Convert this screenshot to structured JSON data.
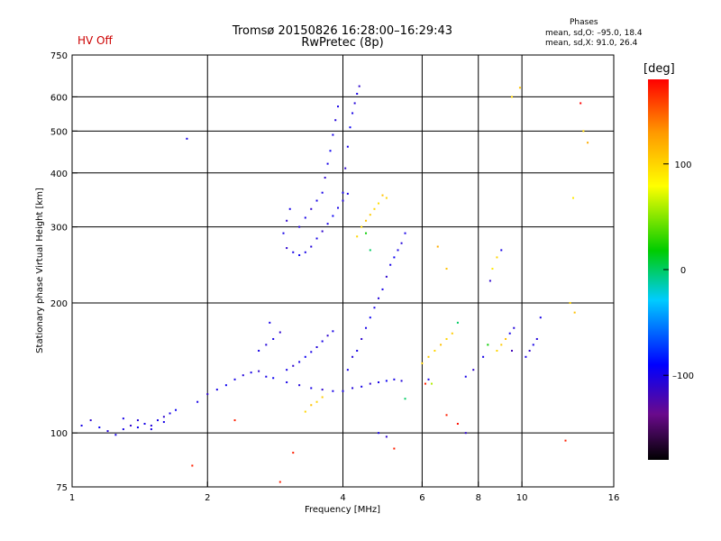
{
  "header": {
    "title_line1": "Tromsø 20150826 16:28:00–16:29:43",
    "title_line2": "RwPretec (8p)",
    "status": "HV Off",
    "stats_title": "Phases",
    "stats_o": "mean, sd,O: –95.0, 18.4",
    "stats_x": "mean, sd,X:  91.0, 26.4"
  },
  "colors": {
    "status": "#cc0000",
    "dominant_trace": "#1a22ee"
  },
  "colorbar": {
    "label": "[deg]",
    "ticks": [
      {
        "value": 100,
        "label": "100"
      },
      {
        "value": 0,
        "label": "0"
      },
      {
        "value": -100,
        "label": "–100"
      }
    ],
    "range": [
      -180,
      180
    ],
    "colormap": "rainbow: black/purple (low) → blue → cyan → green → yellow → orange → red (high)"
  },
  "chart_data": {
    "type": "scatter",
    "title": "Tromsø 20150826 16:28:00–16:29:43",
    "subtitle": "RwPretec (8p)",
    "xlabel": "Frequency [MHz]",
    "ylabel": "Stationary phase Virtual Height [km]",
    "xscale": "log",
    "yscale": "log",
    "xlim": [
      1,
      16
    ],
    "ylim": [
      75,
      750
    ],
    "grid": true,
    "x_gridlines": [
      2,
      4,
      6,
      8,
      10
    ],
    "y_gridlines": [
      100,
      200,
      300,
      400,
      500,
      600
    ],
    "x_ticks": [
      {
        "value": 1,
        "label": "1"
      },
      {
        "value": 2,
        "label": "2"
      },
      {
        "value": 4,
        "label": "4"
      },
      {
        "value": 6,
        "label": "6"
      },
      {
        "value": 8,
        "label": "8"
      },
      {
        "value": 10,
        "label": "10"
      },
      {
        "value": 16,
        "label": "16"
      }
    ],
    "y_ticks": [
      {
        "value": 75,
        "label": "75"
      },
      {
        "value": 100,
        "label": "100"
      },
      {
        "value": 200,
        "label": "200"
      },
      {
        "value": 300,
        "label": "300"
      },
      {
        "value": 400,
        "label": "400"
      },
      {
        "value": 500,
        "label": "500"
      },
      {
        "value": 600,
        "label": "600"
      },
      {
        "value": 750,
        "label": "750"
      }
    ],
    "series": [
      {
        "points": [
          [
            1.05,
            104,
            -100
          ],
          [
            1.1,
            107,
            -110
          ],
          [
            1.15,
            103,
            -95
          ],
          [
            1.2,
            101,
            -105
          ],
          [
            1.25,
            99,
            -100
          ],
          [
            1.3,
            102,
            -100
          ],
          [
            1.35,
            104,
            -110
          ],
          [
            1.4,
            103,
            -95
          ],
          [
            1.45,
            105,
            -100
          ],
          [
            1.5,
            104,
            -105
          ],
          [
            1.55,
            107,
            -100
          ],
          [
            1.6,
            109,
            -110
          ],
          [
            1.65,
            111,
            -100
          ],
          [
            1.7,
            113,
            -95
          ],
          [
            1.3,
            108,
            -100
          ],
          [
            1.4,
            107,
            -105
          ],
          [
            1.5,
            102,
            -100
          ],
          [
            1.6,
            106,
            -100
          ],
          [
            1.9,
            118,
            -100
          ],
          [
            2.0,
            123,
            -110
          ],
          [
            2.1,
            126,
            -100
          ],
          [
            2.2,
            129,
            -95
          ],
          [
            2.3,
            133,
            -100
          ],
          [
            2.4,
            136,
            -105
          ],
          [
            2.5,
            138,
            -100
          ],
          [
            2.6,
            139,
            -110
          ],
          [
            2.7,
            135,
            -100
          ],
          [
            2.8,
            134,
            -95
          ],
          [
            3.0,
            131,
            -100
          ],
          [
            3.2,
            129,
            -105
          ],
          [
            3.4,
            127,
            -100
          ],
          [
            3.6,
            126,
            -110
          ],
          [
            3.8,
            125,
            -100
          ],
          [
            3.0,
            140,
            -100
          ],
          [
            3.1,
            143,
            -110
          ],
          [
            3.2,
            146,
            -100
          ],
          [
            3.3,
            150,
            -95
          ],
          [
            3.4,
            154,
            -100
          ],
          [
            3.5,
            158,
            -105
          ],
          [
            3.6,
            163,
            -100
          ],
          [
            3.7,
            168,
            -110
          ],
          [
            3.8,
            172,
            -100
          ],
          [
            2.6,
            155,
            -100
          ],
          [
            2.7,
            160,
            -105
          ],
          [
            2.8,
            165,
            -100
          ],
          [
            2.9,
            171,
            -110
          ],
          [
            2.75,
            180,
            -100
          ],
          [
            3.0,
            268,
            -110
          ],
          [
            3.1,
            262,
            -100
          ],
          [
            3.2,
            258,
            -95
          ],
          [
            3.3,
            262,
            -100
          ],
          [
            3.4,
            270,
            -105
          ],
          [
            3.5,
            282,
            -100
          ],
          [
            3.6,
            293,
            -110
          ],
          [
            3.7,
            305,
            -100
          ],
          [
            3.8,
            318,
            -95
          ],
          [
            3.9,
            332,
            -100
          ],
          [
            4.0,
            345,
            -105
          ],
          [
            4.1,
            358,
            -100
          ],
          [
            2.95,
            290,
            -100
          ],
          [
            3.0,
            310,
            -110
          ],
          [
            3.05,
            330,
            -100
          ],
          [
            3.2,
            300,
            -105
          ],
          [
            3.3,
            315,
            -100
          ],
          [
            3.4,
            330,
            -110
          ],
          [
            3.5,
            345,
            -100
          ],
          [
            3.6,
            360,
            -100
          ],
          [
            3.65,
            390,
            -110
          ],
          [
            3.7,
            420,
            -100
          ],
          [
            3.75,
            450,
            -95
          ],
          [
            3.8,
            490,
            -100
          ],
          [
            3.85,
            530,
            -105
          ],
          [
            3.9,
            570,
            -100
          ],
          [
            4.0,
            360,
            -100
          ],
          [
            4.05,
            410,
            -110
          ],
          [
            4.1,
            460,
            -100
          ],
          [
            4.15,
            510,
            -95
          ],
          [
            4.2,
            550,
            -100
          ],
          [
            4.25,
            580,
            -105
          ],
          [
            4.3,
            610,
            -100
          ],
          [
            4.35,
            635,
            -110
          ],
          [
            4.1,
            140,
            -100
          ],
          [
            4.2,
            150,
            -105
          ],
          [
            4.3,
            155,
            -100
          ],
          [
            4.4,
            165,
            -110
          ],
          [
            4.5,
            175,
            -100
          ],
          [
            4.6,
            185,
            -95
          ],
          [
            4.7,
            195,
            -100
          ],
          [
            4.8,
            205,
            -105
          ],
          [
            4.9,
            215,
            -100
          ],
          [
            5.0,
            230,
            -110
          ],
          [
            5.1,
            245,
            -100
          ],
          [
            5.2,
            255,
            -95
          ],
          [
            5.3,
            265,
            -100
          ],
          [
            5.4,
            275,
            -105
          ],
          [
            5.5,
            290,
            -100
          ],
          [
            4.0,
            125,
            -100
          ],
          [
            4.2,
            127,
            -105
          ],
          [
            4.4,
            128,
            -100
          ],
          [
            4.6,
            130,
            -110
          ],
          [
            4.8,
            131,
            -100
          ],
          [
            5.0,
            132,
            -95
          ],
          [
            5.2,
            133,
            -100
          ],
          [
            5.4,
            132,
            -105
          ],
          [
            4.4,
            300,
            100
          ],
          [
            4.5,
            310,
            110
          ],
          [
            4.6,
            320,
            105
          ],
          [
            4.7,
            330,
            100
          ],
          [
            4.8,
            340,
            95
          ],
          [
            4.3,
            285,
            100
          ],
          [
            4.9,
            355,
            110
          ],
          [
            5.0,
            350,
            100
          ],
          [
            4.5,
            290,
            20
          ],
          [
            4.6,
            265,
            0
          ],
          [
            6.0,
            145,
            100
          ],
          [
            6.2,
            150,
            105
          ],
          [
            6.4,
            155,
            100
          ],
          [
            6.6,
            160,
            110
          ],
          [
            6.3,
            130,
            60
          ],
          [
            6.8,
            165,
            100
          ],
          [
            7.0,
            170,
            105
          ],
          [
            7.2,
            180,
            0
          ],
          [
            6.5,
            270,
            120
          ],
          [
            6.8,
            240,
            110
          ],
          [
            7.5,
            135,
            -100
          ],
          [
            7.8,
            140,
            -110
          ],
          [
            8.2,
            150,
            -100
          ],
          [
            8.4,
            160,
            20
          ],
          [
            8.8,
            155,
            100
          ],
          [
            9.0,
            160,
            105
          ],
          [
            9.2,
            165,
            110
          ],
          [
            9.4,
            170,
            -100
          ],
          [
            9.6,
            175,
            -105
          ],
          [
            8.6,
            240,
            90
          ],
          [
            8.8,
            255,
            100
          ],
          [
            9.0,
            265,
            -100
          ],
          [
            8.5,
            225,
            -110
          ],
          [
            10.2,
            150,
            -100
          ],
          [
            10.4,
            155,
            -110
          ],
          [
            10.6,
            160,
            -100
          ],
          [
            10.8,
            165,
            -105
          ],
          [
            11.0,
            185,
            -100
          ],
          [
            9.5,
            600,
            100
          ],
          [
            9.9,
            630,
            110
          ],
          [
            13.5,
            580,
            180
          ],
          [
            13.7,
            500,
            100
          ],
          [
            14.0,
            470,
            120
          ],
          [
            13.0,
            350,
            90
          ],
          [
            12.8,
            200,
            100
          ],
          [
            13.1,
            190,
            110
          ],
          [
            12.5,
            96,
            170
          ],
          [
            1.8,
            480,
            -100
          ],
          [
            1.85,
            84,
            170
          ],
          [
            2.3,
            107,
            170
          ],
          [
            2.9,
            77,
            170
          ],
          [
            3.1,
            90,
            170
          ],
          [
            3.3,
            112,
            100
          ],
          [
            3.4,
            116,
            110
          ],
          [
            3.5,
            118,
            100
          ],
          [
            3.6,
            121,
            105
          ],
          [
            5.2,
            92,
            170
          ],
          [
            4.8,
            100,
            -100
          ],
          [
            5.0,
            98,
            -110
          ],
          [
            5.5,
            120,
            0
          ],
          [
            6.8,
            110,
            170
          ],
          [
            7.2,
            105,
            175
          ],
          [
            7.5,
            100,
            -110
          ],
          [
            6.1,
            130,
            170
          ],
          [
            6.2,
            133,
            -100
          ],
          [
            9.5,
            155,
            -120
          ]
        ]
      }
    ]
  }
}
